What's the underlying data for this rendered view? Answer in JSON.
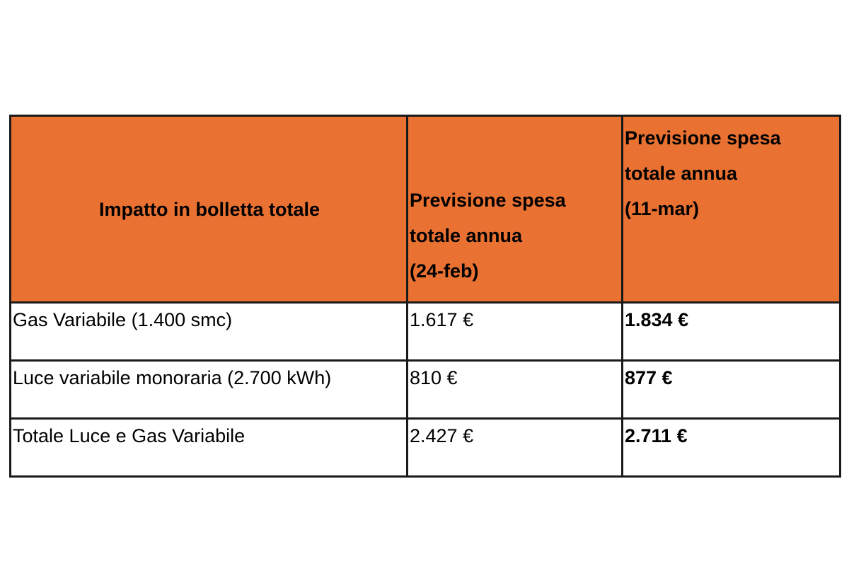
{
  "header_color": "#E97132",
  "headers": [
    [
      "Impatto in bolletta totale"
    ],
    [
      "Previsione spesa",
      "totale annua",
      "(24-feb)"
    ],
    [
      "Previsione spesa",
      "totale annua",
      "(11-mar)"
    ]
  ],
  "rows": [
    [
      "Gas Variabile (1.400 smc)",
      "1.617 €",
      "1.834 €"
    ],
    [
      "Luce variabile monoraria (2.700 kWh)",
      "810 €",
      "877 €"
    ],
    [
      "Totale Luce e Gas Variabile",
      "2.427 €",
      "2.711 €"
    ]
  ]
}
